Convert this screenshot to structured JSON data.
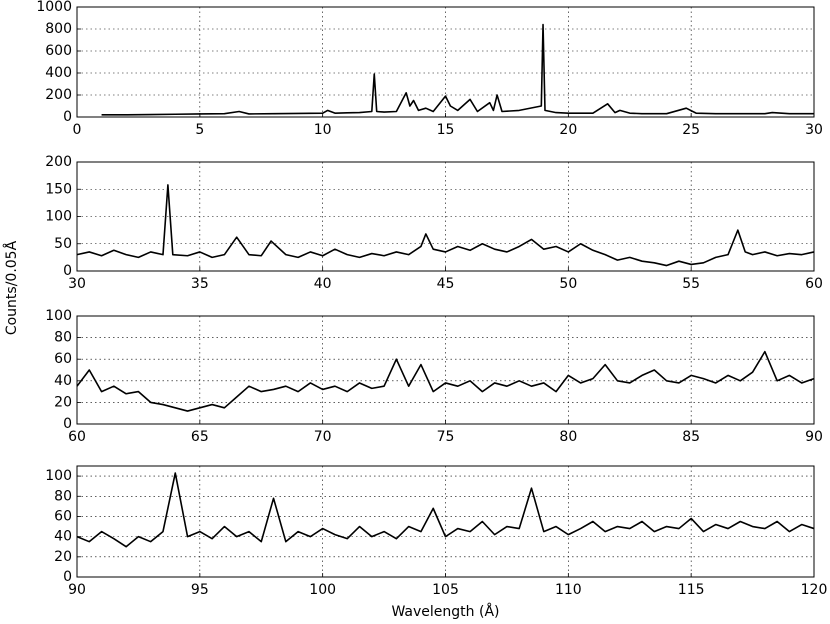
{
  "ylabel": "Counts/0.05Å",
  "chart_data": [
    {
      "type": "line",
      "grid": true,
      "xlim": [
        0,
        30
      ],
      "ylim": [
        0,
        1000
      ],
      "xticks": [
        0,
        5,
        10,
        15,
        20,
        25,
        30
      ],
      "yticks": [
        0,
        200,
        400,
        600,
        800,
        1000
      ],
      "x": [
        1,
        2,
        3,
        4,
        5,
        6,
        6.6,
        7,
        8,
        9,
        10,
        10.2,
        10.5,
        11,
        11.5,
        12.0,
        12.1,
        12.2,
        12.5,
        13,
        13.4,
        13.55,
        13.7,
        13.9,
        14.2,
        14.5,
        15.0,
        15.2,
        15.5,
        16.0,
        16.3,
        16.8,
        16.95,
        17.1,
        17.3,
        18,
        18.9,
        18.97,
        19.05,
        19.5,
        20,
        21,
        21.6,
        21.9,
        22.1,
        22.5,
        23,
        24,
        24.8,
        25.2,
        26,
        27,
        28,
        28.3,
        29,
        30
      ],
      "series": [
        {
          "color": "#000000",
          "values": [
            20,
            20,
            22,
            25,
            28,
            30,
            50,
            28,
            30,
            32,
            35,
            60,
            35,
            38,
            40,
            50,
            390,
            50,
            45,
            50,
            220,
            100,
            150,
            60,
            80,
            50,
            190,
            100,
            60,
            160,
            50,
            130,
            60,
            200,
            50,
            60,
            100,
            840,
            60,
            40,
            35,
            35,
            120,
            40,
            60,
            35,
            30,
            30,
            80,
            35,
            30,
            30,
            30,
            40,
            30,
            30
          ]
        }
      ]
    },
    {
      "type": "line",
      "grid": true,
      "xlim": [
        30,
        60
      ],
      "ylim": [
        0,
        200
      ],
      "xticks": [
        30,
        35,
        40,
        45,
        50,
        55,
        60
      ],
      "yticks": [
        0,
        50,
        100,
        150,
        200
      ],
      "x": [
        30,
        30.5,
        31,
        31.5,
        32,
        32.5,
        33,
        33.5,
        33.7,
        33.9,
        34.5,
        35,
        35.5,
        36,
        36.5,
        37,
        37.5,
        37.9,
        38.5,
        39,
        39.5,
        40,
        40.5,
        41,
        41.5,
        42,
        42.5,
        43,
        43.5,
        44,
        44.2,
        44.5,
        45,
        45.5,
        46,
        46.5,
        47,
        47.5,
        48,
        48.5,
        49,
        49.5,
        50,
        50.5,
        51,
        51.5,
        52,
        52.5,
        53,
        53.5,
        54,
        54.5,
        55,
        55.5,
        56,
        56.5,
        56.9,
        57.2,
        57.5,
        58,
        58.5,
        59,
        59.5,
        60
      ],
      "series": [
        {
          "color": "#000000",
          "values": [
            30,
            35,
            28,
            38,
            30,
            25,
            35,
            30,
            158,
            30,
            28,
            35,
            25,
            30,
            62,
            30,
            28,
            55,
            30,
            25,
            35,
            28,
            40,
            30,
            25,
            32,
            28,
            35,
            30,
            45,
            68,
            40,
            35,
            45,
            38,
            50,
            40,
            35,
            45,
            58,
            40,
            45,
            35,
            50,
            38,
            30,
            20,
            25,
            18,
            15,
            10,
            18,
            12,
            15,
            25,
            30,
            75,
            35,
            30,
            35,
            28,
            32,
            30,
            35
          ]
        }
      ]
    },
    {
      "type": "line",
      "grid": true,
      "xlim": [
        60,
        90
      ],
      "ylim": [
        0,
        100
      ],
      "xticks": [
        60,
        65,
        70,
        75,
        80,
        85,
        90
      ],
      "yticks": [
        0,
        20,
        40,
        60,
        80,
        100
      ],
      "x": [
        60,
        60.5,
        61,
        61.5,
        62,
        62.5,
        63,
        63.5,
        64,
        64.5,
        65,
        65.5,
        66,
        66.5,
        67,
        67.5,
        68,
        68.5,
        69,
        69.5,
        70,
        70.5,
        71,
        71.5,
        72,
        72.5,
        73,
        73.5,
        74,
        74.5,
        75,
        75.5,
        76,
        76.5,
        77,
        77.5,
        78,
        78.5,
        79,
        79.5,
        80,
        80.5,
        81,
        81.5,
        82,
        82.5,
        83,
        83.5,
        84,
        84.5,
        85,
        85.5,
        86,
        86.5,
        87,
        87.5,
        88,
        88.5,
        89,
        89.5,
        90
      ],
      "series": [
        {
          "color": "#000000",
          "values": [
            35,
            50,
            30,
            35,
            28,
            30,
            20,
            18,
            15,
            12,
            15,
            18,
            15,
            25,
            35,
            30,
            32,
            35,
            30,
            38,
            32,
            35,
            30,
            38,
            33,
            35,
            60,
            35,
            55,
            30,
            38,
            35,
            40,
            30,
            38,
            35,
            40,
            35,
            38,
            30,
            45,
            38,
            42,
            55,
            40,
            38,
            45,
            50,
            40,
            38,
            45,
            42,
            38,
            45,
            40,
            48,
            67,
            40,
            45,
            38,
            42
          ]
        }
      ]
    },
    {
      "type": "line",
      "grid": true,
      "xlim": [
        90,
        120
      ],
      "ylim": [
        0,
        110
      ],
      "xticks": [
        90,
        95,
        100,
        105,
        110,
        115,
        120
      ],
      "yticks": [
        0,
        20,
        40,
        60,
        80,
        100
      ],
      "xlabel": "Wavelength (Å)",
      "x": [
        90,
        90.5,
        91,
        91.5,
        92,
        92.5,
        93,
        93.5,
        94,
        94.5,
        95,
        95.5,
        96,
        96.5,
        97,
        97.5,
        98,
        98.5,
        99,
        99.5,
        100,
        100.5,
        101,
        101.5,
        102,
        102.5,
        103,
        103.5,
        104,
        104.5,
        105,
        105.5,
        106,
        106.5,
        107,
        107.5,
        108,
        108.5,
        109,
        109.5,
        110,
        110.5,
        111,
        111.5,
        112,
        112.5,
        113,
        113.5,
        114,
        114.5,
        115,
        115.5,
        116,
        116.5,
        117,
        117.5,
        118,
        118.5,
        119,
        119.5,
        120
      ],
      "series": [
        {
          "color": "#000000",
          "values": [
            40,
            35,
            45,
            38,
            30,
            40,
            35,
            45,
            103,
            40,
            45,
            38,
            50,
            40,
            45,
            35,
            78,
            35,
            45,
            40,
            48,
            42,
            38,
            50,
            40,
            45,
            38,
            50,
            45,
            68,
            40,
            48,
            45,
            55,
            42,
            50,
            48,
            88,
            45,
            50,
            42,
            48,
            55,
            45,
            50,
            48,
            55,
            45,
            50,
            48,
            58,
            45,
            52,
            48,
            55,
            50,
            48,
            55,
            45,
            52,
            48
          ]
        }
      ]
    }
  ]
}
